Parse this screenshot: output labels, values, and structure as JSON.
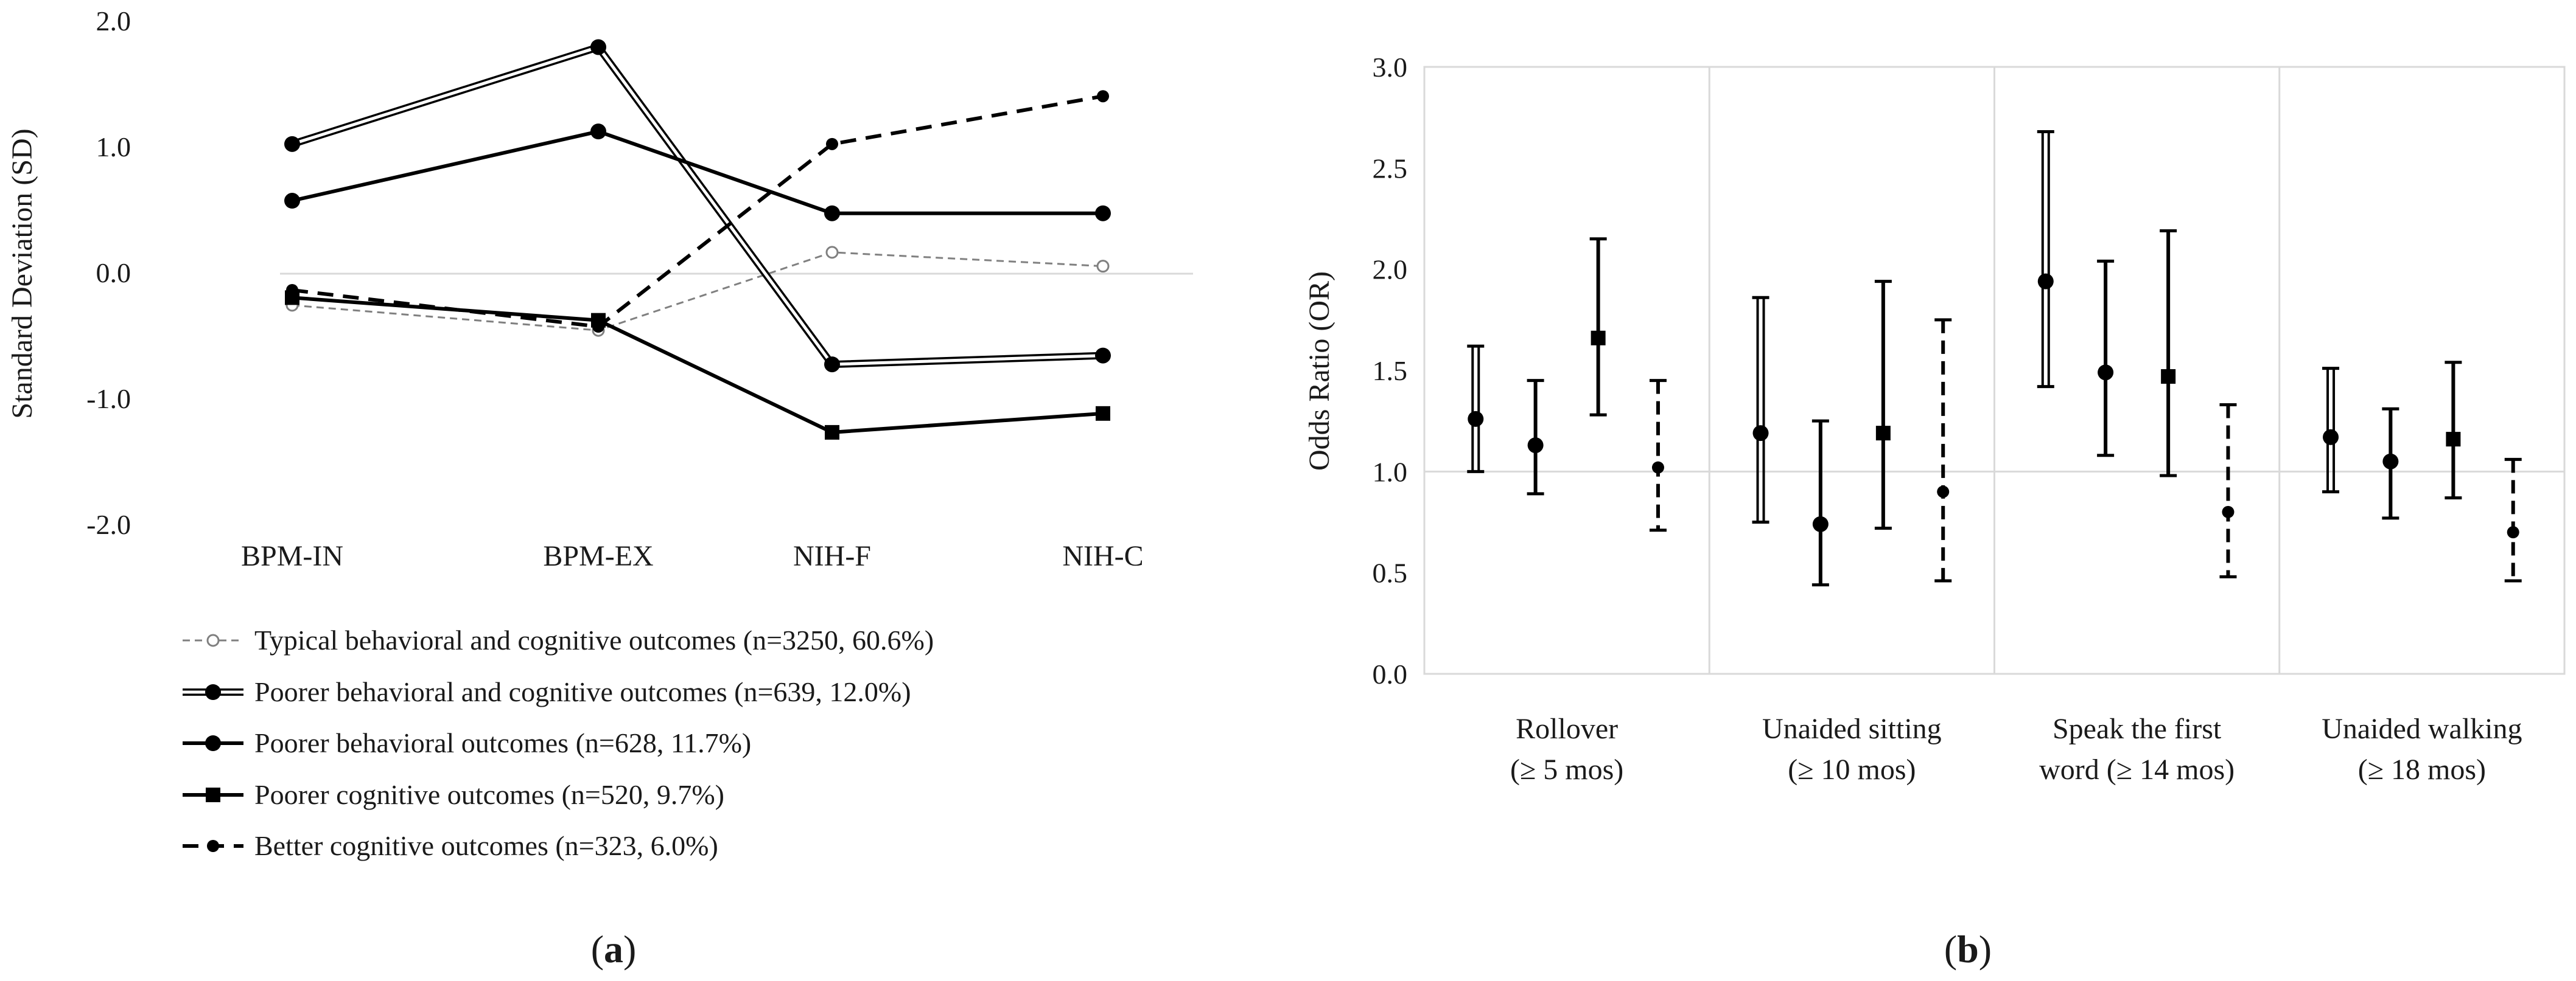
{
  "chart_data": [
    {
      "panel_label": "a",
      "type": "line",
      "ylabel": "Standard Deviation (SD)",
      "xlabel": "",
      "ylim": [
        -2.0,
        2.0
      ],
      "yticks": [
        "2.0",
        "1.0",
        "0.0",
        "-1.0",
        "-2.0"
      ],
      "categories": [
        "BPM-IN",
        "BPM-EX",
        "NIH-F",
        "NIH-C"
      ],
      "series": [
        {
          "name": "Typical behavioral and cognitive outcomes (n=3250, 60.6%)",
          "values": [
            -0.26,
            -0.46,
            0.16,
            0.05
          ],
          "style": "thin-dashed-open-circle",
          "color": "#808080"
        },
        {
          "name": "Poorer behavioral  and cognitive outcomes (n=639, 12.0%)",
          "values": [
            1.02,
            1.79,
            -0.73,
            -0.66
          ],
          "style": "double-line-circle",
          "color": "#000000"
        },
        {
          "name": "Poorer behavioral outcomes (n=628, 11.7%)",
          "values": [
            0.57,
            1.12,
            0.47,
            0.47
          ],
          "style": "solid-circle",
          "color": "#000000"
        },
        {
          "name": "Poorer cognitive outcomes (n=520, 9.7%)",
          "values": [
            -0.2,
            -0.38,
            -1.27,
            -1.12
          ],
          "style": "solid-square",
          "color": "#000000"
        },
        {
          "name": "Better cognitive outcomes (n=323, 6.0%)",
          "values": [
            -0.14,
            -0.43,
            1.02,
            1.4
          ],
          "style": "dashed-circle",
          "color": "#000000"
        }
      ]
    },
    {
      "panel_label": "b",
      "type": "errorbar",
      "ylabel": "Odds Ratio (OR)",
      "xlabel": "",
      "ylim": [
        0.0,
        3.0
      ],
      "yticks": [
        "3.0",
        "2.5",
        "2.0",
        "1.5",
        "1.0",
        "0.5",
        "0.0"
      ],
      "reference_line": 1.0,
      "categories": [
        {
          "line1": "Rollover",
          "line2": "(≥ 5 mos)"
        },
        {
          "line1": "Unaided sitting",
          "line2": "(≥ 10 mos)"
        },
        {
          "line1": "Speak the first",
          "line2": "word (≥ 14 mos)"
        },
        {
          "line1": "Unaided walking",
          "line2": "(≥ 18 mos)"
        }
      ],
      "series": [
        {
          "name": "Poorer behavioral  and cognitive outcomes",
          "style": "double-bar-circle",
          "or": [
            1.26,
            1.19,
            1.94,
            1.17
          ],
          "lower": [
            1.0,
            0.75,
            1.42,
            0.9
          ],
          "upper": [
            1.62,
            1.86,
            2.68,
            1.51
          ]
        },
        {
          "name": "Poorer behavioral outcomes",
          "style": "solid-bar-circle",
          "or": [
            1.13,
            0.74,
            1.49,
            1.05
          ],
          "lower": [
            0.89,
            0.44,
            1.08,
            0.77
          ],
          "upper": [
            1.45,
            1.25,
            2.04,
            1.31
          ]
        },
        {
          "name": "Poorer cognitive outcomes",
          "style": "solid-bar-square",
          "or": [
            1.66,
            1.19,
            1.47,
            1.16
          ],
          "lower": [
            1.28,
            0.72,
            0.98,
            0.87
          ],
          "upper": [
            2.15,
            1.94,
            2.19,
            1.54
          ]
        },
        {
          "name": "Better cognitive outcomes",
          "style": "dashed-bar-circle",
          "or": [
            1.02,
            0.9,
            0.8,
            0.7
          ],
          "lower": [
            0.71,
            0.46,
            0.48,
            0.46
          ],
          "upper": [
            1.45,
            1.75,
            1.33,
            1.06
          ]
        }
      ]
    }
  ]
}
